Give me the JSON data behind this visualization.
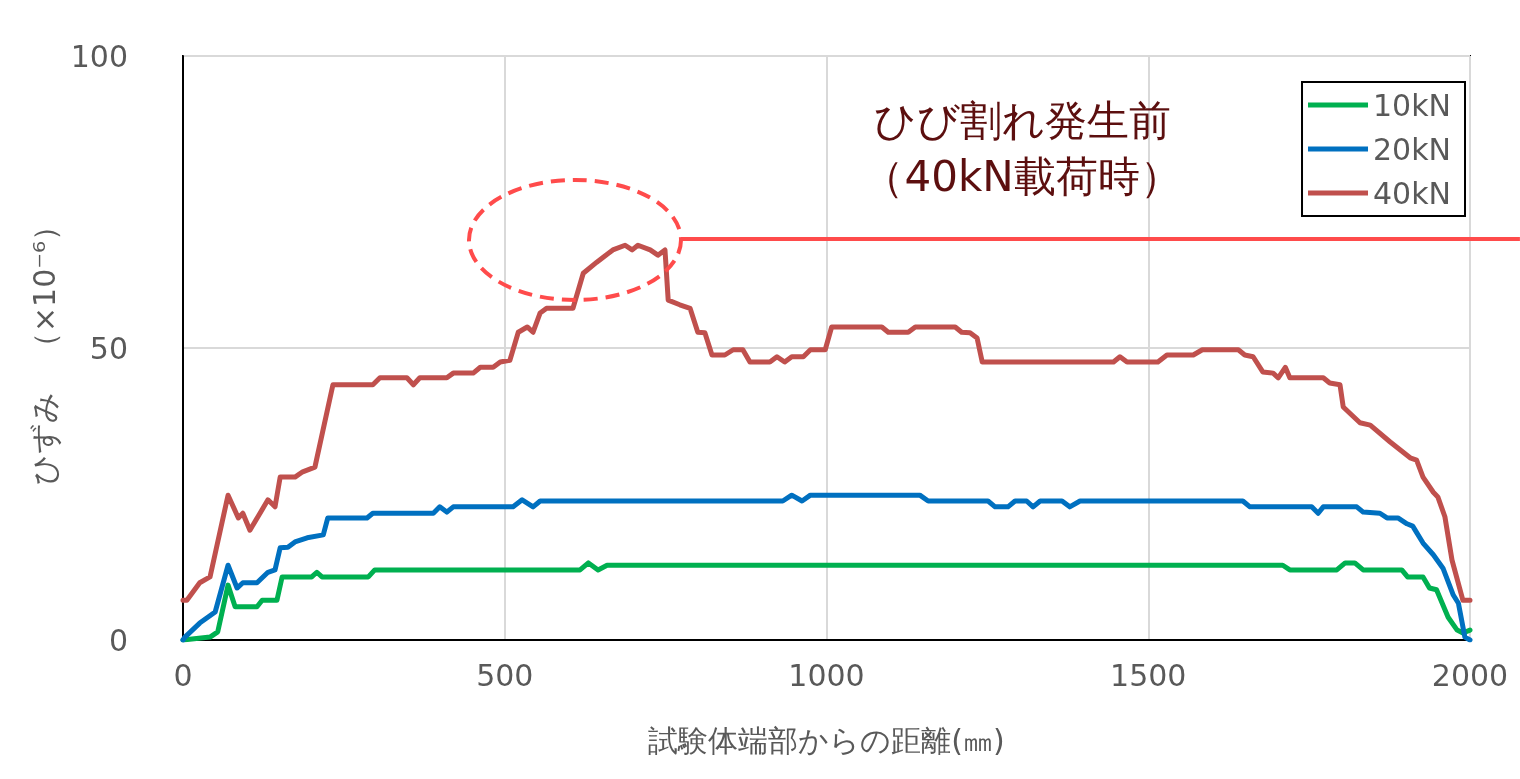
{
  "chart_data": {
    "type": "line",
    "xlabel": "試験体端部からの距離(㎜)",
    "ylabel": "ひずみ　（×10⁻⁶）",
    "xlim": [
      0,
      2000
    ],
    "xticks": [
      0,
      500,
      1000,
      1500,
      2000
    ],
    "ylim": [
      0,
      100
    ],
    "yticks": [
      0,
      50,
      100
    ],
    "grid": true,
    "legend": "top right",
    "marker": "none",
    "line_style": "solid",
    "annotations": [
      "ひび割れ発生前（40kN載荷時）"
    ],
    "series": [
      {
        "name": "10kN",
        "color": "#00b050",
        "x": [
          0,
          42,
          54,
          70,
          81,
          115,
          123,
          146,
          154,
          200,
          208,
          216,
          288,
          298,
          617,
          630,
          645,
          659,
          1709,
          1720,
          1793,
          1806,
          1821,
          1834,
          1894,
          1903,
          1927,
          1937,
          1948,
          1966,
          1980,
          1989,
          2000
        ],
        "values": [
          0,
          0.5,
          1.4,
          9.4,
          5.7,
          5.7,
          6.8,
          6.8,
          10.8,
          10.8,
          11.6,
          10.8,
          10.8,
          12,
          12,
          13.2,
          12,
          12.8,
          12.8,
          12,
          12,
          13.2,
          13.2,
          12,
          12,
          10.8,
          10.8,
          8.9,
          8.6,
          3.9,
          1.7,
          1.2,
          1.7
        ]
      },
      {
        "name": "20kN",
        "color": "#0070c0",
        "x": [
          0,
          3,
          26,
          50,
          70,
          84,
          93,
          115,
          132,
          143,
          151,
          163,
          174,
          193,
          218,
          225,
          286,
          295,
          389,
          399,
          410,
          420,
          513,
          527,
          544,
          555,
          932,
          946,
          962,
          975,
          1145,
          1158,
          1251,
          1262,
          1282,
          1293,
          1311,
          1321,
          1332,
          1366,
          1378,
          1394,
          1647,
          1658,
          1754,
          1764,
          1772,
          1824,
          1834,
          1860,
          1871,
          1888,
          1902,
          1911,
          1927,
          1943,
          1958,
          1974,
          1982,
          1992,
          2000
        ],
        "values": [
          0,
          0.5,
          2.9,
          4.8,
          12.8,
          8.9,
          9.8,
          9.8,
          11.6,
          12,
          15.8,
          15.9,
          16.8,
          17.5,
          18,
          20.9,
          20.9,
          21.7,
          21.7,
          22.8,
          21.9,
          22.8,
          22.8,
          24,
          22.8,
          23.8,
          23.8,
          24.8,
          23.8,
          24.8,
          24.8,
          23.8,
          23.8,
          22.8,
          22.8,
          23.8,
          23.8,
          22.8,
          23.8,
          23.8,
          22.8,
          23.8,
          23.8,
          22.8,
          22.8,
          21.7,
          22.8,
          22.8,
          21.9,
          21.7,
          20.9,
          20.9,
          19.9,
          19.5,
          16.6,
          14.6,
          12.3,
          7.7,
          6.3,
          0.5,
          0
        ]
      },
      {
        "name": "40kN",
        "color": "#c0504d",
        "x": [
          0,
          6,
          26,
          42,
          70,
          86,
          93,
          104,
          132,
          143,
          151,
          174,
          186,
          205,
          233,
          295,
          306,
          348,
          358,
          368,
          410,
          420,
          451,
          462,
          482,
          493,
          508,
          521,
          535,
          544,
          555,
          565,
          606,
          622,
          643,
          668,
          687,
          698,
          707,
          726,
          738,
          749,
          754,
          772,
          788,
          800,
          811,
          822,
          842,
          855,
          870,
          881,
          912,
          923,
          935,
          946,
          964,
          975,
          998,
          1008,
          1086,
          1096,
          1127,
          1138,
          1200,
          1210,
          1223,
          1234,
          1242,
          1446,
          1456,
          1467,
          1515,
          1529,
          1570,
          1584,
          1640,
          1650,
          1663,
          1678,
          1694,
          1702,
          1713,
          1720,
          1772,
          1782,
          1798,
          1803,
          1829,
          1845,
          1876,
          1907,
          1917,
          1927,
          1943,
          1950,
          1961,
          1972,
          1989,
          2000
        ],
        "values": [
          6.8,
          6.8,
          9.8,
          10.8,
          24.8,
          20.9,
          21.7,
          18.8,
          24,
          22.8,
          27.9,
          27.9,
          28.8,
          29.6,
          43.7,
          43.7,
          44.9,
          44.9,
          43.7,
          44.9,
          44.9,
          45.7,
          45.7,
          46.7,
          46.7,
          47.6,
          47.9,
          52.7,
          53.6,
          52.7,
          56,
          56.8,
          56.8,
          62.8,
          64.7,
          66.8,
          67.6,
          66.8,
          67.6,
          66.8,
          65.9,
          66.8,
          58.2,
          57.4,
          56.8,
          52.7,
          52.6,
          48.8,
          48.8,
          49.7,
          49.7,
          47.6,
          47.6,
          48.5,
          47.6,
          48.5,
          48.5,
          49.7,
          49.7,
          53.6,
          53.6,
          52.7,
          52.7,
          53.6,
          53.6,
          52.7,
          52.6,
          51.7,
          47.6,
          47.6,
          48.5,
          47.6,
          47.6,
          48.8,
          48.8,
          49.7,
          49.7,
          48.8,
          48.5,
          45.9,
          45.7,
          44.9,
          46.7,
          44.9,
          44.9,
          44,
          43.7,
          39.9,
          37.2,
          36.8,
          33.9,
          31.2,
          30.8,
          27.9,
          25.3,
          24.5,
          21.1,
          13.7,
          6.8,
          6.8
        ]
      }
    ]
  }
}
